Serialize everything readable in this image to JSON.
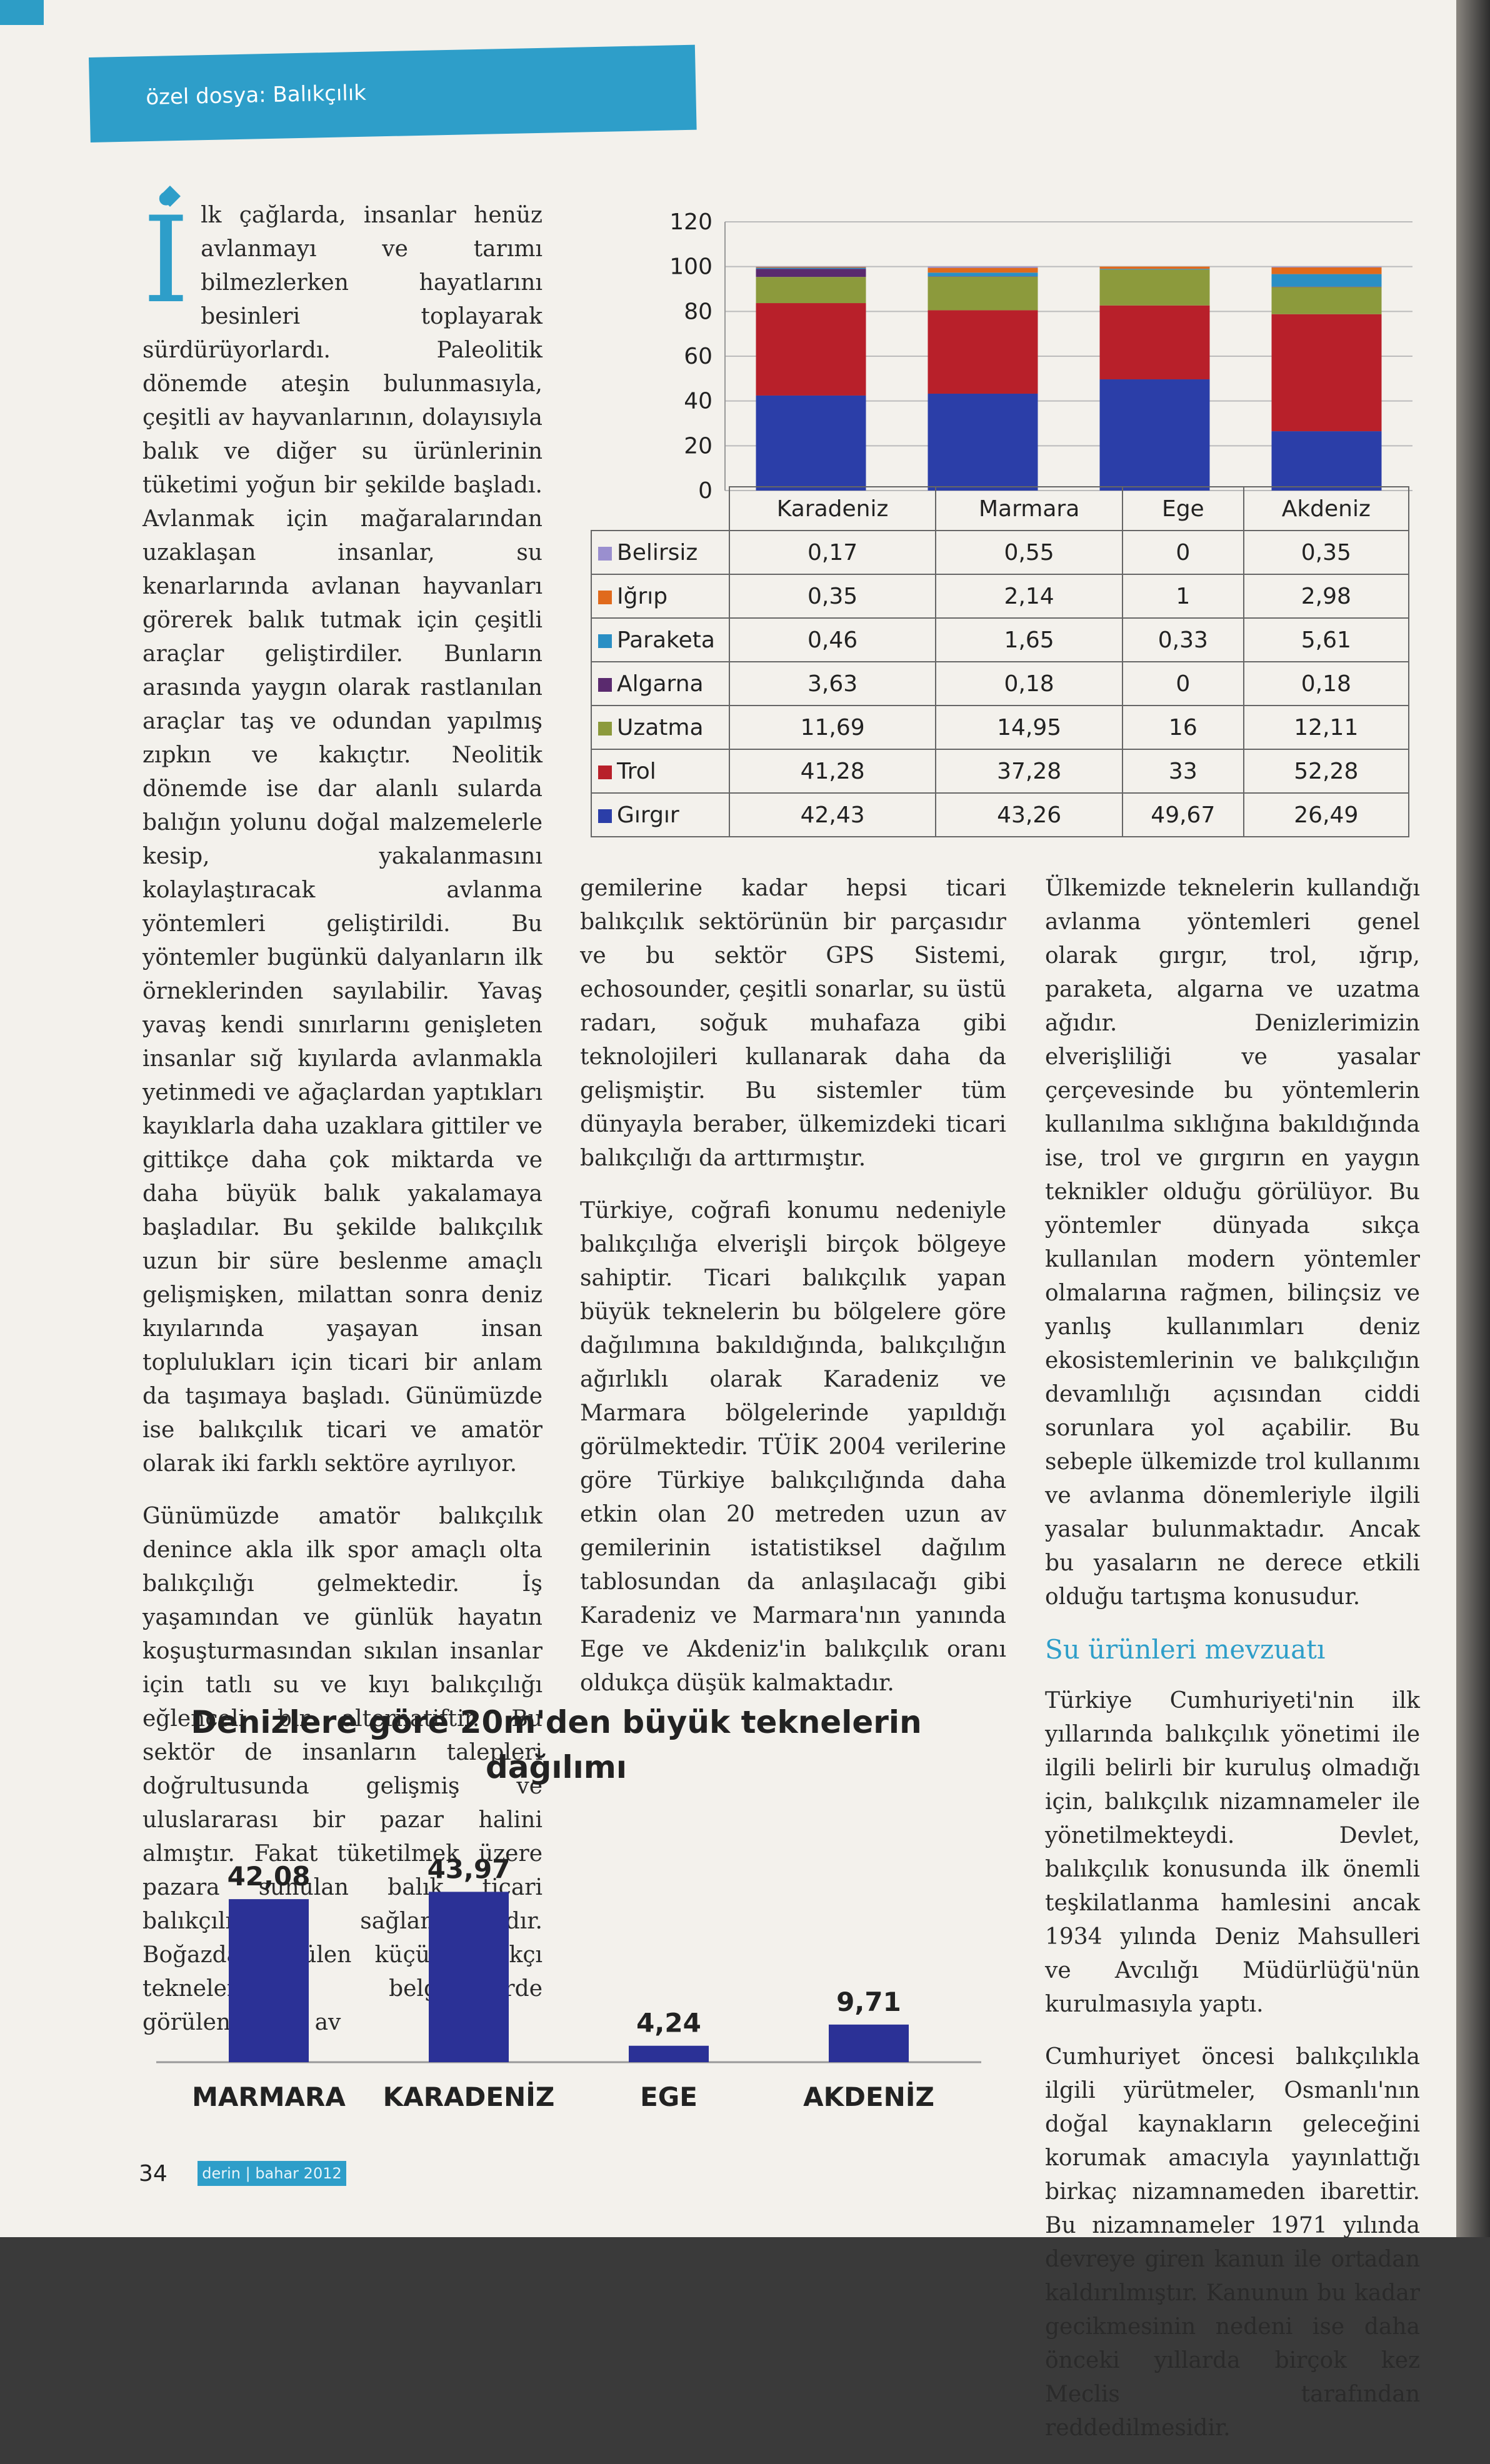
{
  "header": {
    "section": "özel dosya: Balıkçılık"
  },
  "left_column": {
    "dropcap": "İ",
    "p1": "lk çağlarda, insanlar henüz avlanmayı ve tarımı bilmezlerken hayatlarını besinleri toplayarak sürdürüyorlardı. Paleolitik dönemde ateşin bulunmasıyla, çeşitli av hayvanlarının, dolayısıyla balık ve diğer su ürünlerinin tüketimi yoğun bir şekilde başladı. Avlanmak için mağaralarından uzaklaşan insanlar, su kenarlarında avlanan hayvanları görerek balık tutmak için çeşitli araçlar geliştirdiler. Bunların arasında yaygın olarak rastlanılan araçlar taş ve odundan yapılmış zıpkın ve kakıçtır. Neolitik dönemde ise dar alanlı sularda balığın yolunu doğal malzemelerle kesip, yakalanmasını kolaylaştıracak avlanma yöntemleri geliştirildi. Bu yöntemler bugünkü dalyanların ilk örneklerinden sayılabilir. Yavaş yavaş kendi sınırlarını genişleten insanlar sığ kıyılarda avlanmakla yetinmedi ve ağaçlardan yaptıkları kayıklarla daha uzaklara gittiler ve gittikçe daha çok miktarda ve daha büyük balık yakalamaya başladılar. Bu şekilde balıkçılık uzun bir süre beslenme amaçlı gelişmişken, milattan sonra deniz kıyılarında yaşayan insan toplulukları için ticari bir anlam da taşımaya başladı. Günümüzde ise balıkçılık ticari ve amatör olarak iki farklı sektöre ayrılıyor.",
    "p2": "Günümüzde amatör balıkçılık denince akla ilk spor amaçlı olta balıkçılığı gelmektedir. İş yaşamından ve günlük hayatın koşuşturmasından sıkılan insanlar için tatlı su ve kıyı balıkçılığı eğlenceli bir alternatiftir. Bu sektör de insanların talepleri doğrultusunda gelişmiş ve uluslararası bir pazar halini almıştır. Fakat tüketilmek üzere pazara sunulan balık ticari balıkçılıkla sağlanmaktadır. Boğazda görülen küçük balıkçı teknelerinden belgesellerde görülen büyük av"
  },
  "mid_column": {
    "p1": "gemilerine kadar hepsi ticari balıkçılık sektörünün bir parçasıdır ve bu sektör GPS Sistemi, echosounder, çeşitli sonarlar, su üstü radarı, soğuk muhafaza gibi teknolojileri kullanarak daha da gelişmiştir. Bu sistemler tüm dünyayla beraber, ülkemizdeki ticari balıkçılığı da arttırmıştır.",
    "p2": "Türkiye, coğrafi konumu nedeniyle balıkçılığa elverişli birçok bölgeye sahiptir. Ticari balıkçılık yapan büyük teknelerin bu bölgelere göre dağılımına bakıldığında, balıkçılığın ağırlıklı olarak Karadeniz ve Marmara bölgelerinde yapıldığı görülmektedir. TÜİK 2004 verilerine göre Türkiye balıkçılığında daha etkin olan 20 metreden uzun av gemilerinin istatistiksel dağılım tablosundan da anlaşılacağı gibi Karadeniz ve Marmara'nın yanında Ege ve Akdeniz'in balıkçılık oranı oldukça düşük kalmaktadır."
  },
  "right_column": {
    "p1": "Ülkemizde teknelerin kullandığı avlanma yöntemleri genel olarak gırgır, trol, ığrıp, paraketa, algarna ve uzatma ağıdır. Denizlerimizin elverişliliği ve yasalar çerçevesinde bu yöntemlerin kullanılma sıklığına bakıldığında ise, trol ve gırgırın en yaygın teknikler olduğu görülüyor. Bu yöntemler dünyada sıkça kullanılan modern yöntemler olmalarına rağmen, bilinçsiz ve yanlış kullanımları deniz ekosistemlerinin ve balıkçılığın devamlılığı açısından ciddi sorunlara yol açabilir. Bu sebeple ülkemizde trol kullanımı ve avlanma dönemleriyle ilgili yasalar bulunmaktadır. Ancak bu yasaların ne derece etkili olduğu tartışma konusudur.",
    "subhead": "Su ürünleri mevzuatı",
    "p2": "Türkiye Cumhuriyeti'nin ilk yıllarında balıkçılık yönetimi ile ilgili belirli bir kuruluş olmadığı için, balıkçılık nizamnameler ile yönetilmekteydi. Devlet, balıkçılık konusunda ilk önemli teşkilatlanma hamlesini ancak 1934 yılında Deniz Mahsulleri ve Avcılığı Müdürlüğü'nün kurulmasıyla yaptı.",
    "p3": "Cumhuriyet öncesi balıkçılıkla ilgili yürütmeler, Osmanlı'nın doğal kaynakların geleceğini korumak amacıyla yayınlattığı birkaç nizamnameden ibarettir. Bu nizamnameler 1971 yılında devreye giren kanun ile ortadan kaldırılmıştır. Kanunun bu kadar gecikmesinin nedeni ise daha önceki yıllarda birçok kez Meclis tarafından reddedilmesidir."
  },
  "chart_data": [
    {
      "type": "bar",
      "stacked": true,
      "categories": [
        "Karadeniz",
        "Marmara",
        "Ege",
        "Akdeniz"
      ],
      "ylim": [
        0,
        120
      ],
      "yticks": [
        "120",
        "100",
        "80",
        "60",
        "40",
        "20",
        "0"
      ],
      "grid": true,
      "series": [
        {
          "name": "Gırgır",
          "color": "#2b3ea8",
          "values": [
            "42,43",
            "43,26",
            "49,67",
            "26,49"
          ]
        },
        {
          "name": "Trol",
          "color": "#b8202a",
          "values": [
            "41,28",
            "37,28",
            "33",
            "52,28"
          ]
        },
        {
          "name": "Uzatma",
          "color": "#8c9a3c",
          "values": [
            "11,69",
            "14,95",
            "16",
            "12,11"
          ]
        },
        {
          "name": "Algarna",
          "color": "#5a2a6e",
          "values": [
            "3,63",
            "0,18",
            "0",
            "0,18"
          ]
        },
        {
          "name": "Paraketa",
          "color": "#2a8fc4",
          "values": [
            "0,46",
            "1,65",
            "0,33",
            "5,61"
          ]
        },
        {
          "name": "Iğrıp",
          "color": "#e06a1c",
          "values": [
            "0,35",
            "2,14",
            "1",
            "2,98"
          ]
        },
        {
          "name": "Belirsiz",
          "color": "#9a8fcf",
          "values": [
            "0,17",
            "0,55",
            "0",
            "0,35"
          ]
        }
      ],
      "table_row_order": [
        "Belirsiz",
        "Iğrıp",
        "Paraketa",
        "Algarna",
        "Uzatma",
        "Trol",
        "Gırgır"
      ]
    },
    {
      "type": "bar",
      "title": "Denizlere göre 20m'den büyük teknelerin dağılımı",
      "categories": [
        "MARMARA",
        "KARADENİZ",
        "EGE",
        "AKDENİZ"
      ],
      "values": [
        42.08,
        43.97,
        4.24,
        9.71
      ],
      "value_labels": [
        "42,08",
        "43,97",
        "4,24",
        "9,71"
      ],
      "color": "#2b3196",
      "ylim": [
        0,
        50
      ]
    }
  ],
  "footer": {
    "page_number": "34",
    "tag": "derin | bahar 2012"
  }
}
